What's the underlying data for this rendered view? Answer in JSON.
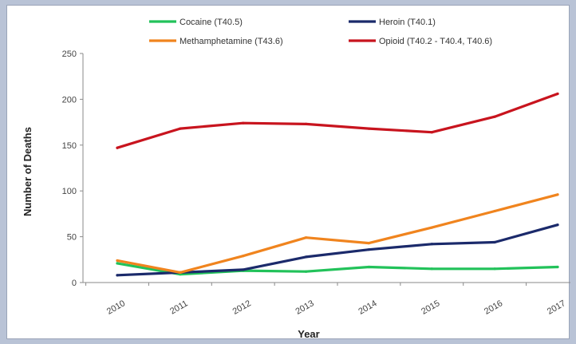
{
  "chart_data": {
    "type": "line",
    "title": "",
    "xlabel": "Year",
    "ylabel": "Number of Deaths",
    "x": [
      "2010",
      "2011",
      "2012",
      "2013",
      "2014",
      "2015",
      "2016",
      "2017"
    ],
    "ylim": [
      0,
      250
    ],
    "yticks": [
      0,
      50,
      100,
      150,
      200,
      250
    ],
    "grid": false,
    "legend_position": "top",
    "series": [
      {
        "name": "Cocaine (T40.5)",
        "color": "#22c25a",
        "values": [
          21,
          9,
          13,
          12,
          17,
          15,
          15,
          17
        ]
      },
      {
        "name": "Heroin (T40.1)",
        "color": "#1b2a6b",
        "values": [
          8,
          11,
          14,
          28,
          36,
          42,
          44,
          63
        ]
      },
      {
        "name": "Methamphetamine (T43.6)",
        "color": "#f0841e",
        "values": [
          24,
          11,
          29,
          49,
          43,
          60,
          78,
          96
        ]
      },
      {
        "name": "Opioid (T40.2 - T40.4, T40.6)",
        "color": "#c8141e",
        "values": [
          147,
          168,
          174,
          173,
          168,
          164,
          181,
          206
        ]
      }
    ]
  }
}
